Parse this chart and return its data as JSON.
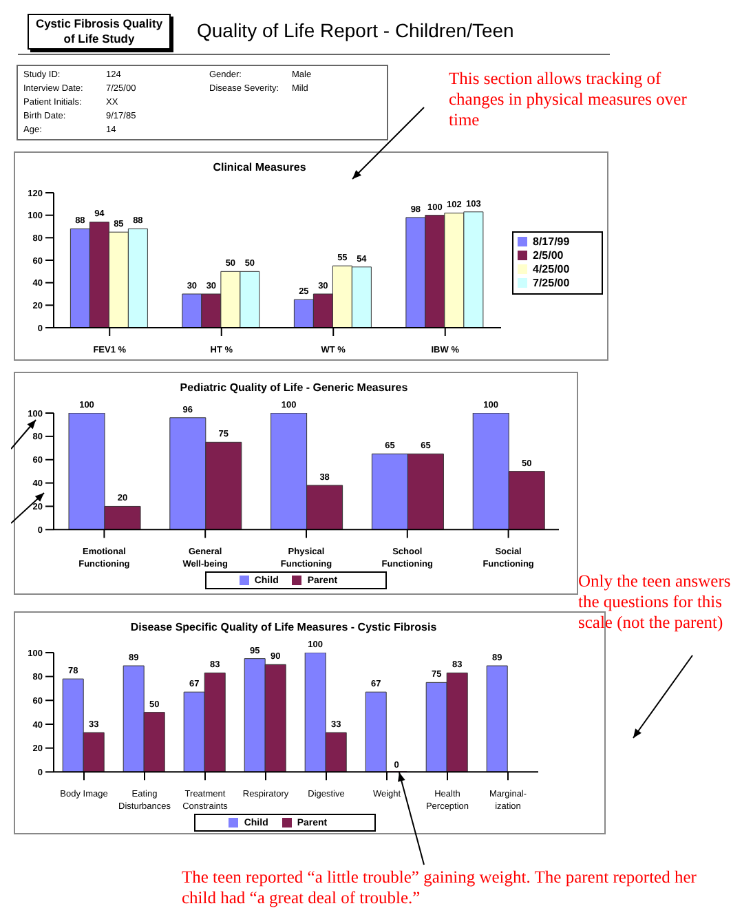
{
  "chart_data": [
    {
      "type": "other",
      "title": "Quality of Life Report - Children/Teen",
      "subtitle": "Cystic Fibrosis Quality of Life Study",
      "annotations": [
        "Study ID:",
        "124",
        "Interview Date:",
        "7/25/00",
        "Patient Initials:",
        "XX",
        "Birth Date:",
        "9/17/85",
        "Age:",
        "14",
        "Gender:",
        "Male",
        "Disease Severity:",
        "Mild"
      ]
    },
    {
      "type": "bar",
      "title": "Clinical Measures",
      "categories": [
        "FEV1 %",
        "HT %",
        "WT %",
        "IBW %"
      ],
      "series": [
        {
          "name": "8/17/99",
          "color": "#8080ff",
          "values": [
            88,
            30,
            25,
            98
          ]
        },
        {
          "name": "2/5/00",
          "color": "#7f1f4f",
          "values": [
            94,
            30,
            30,
            100
          ]
        },
        {
          "name": "4/25/00",
          "color": "#ffffcc",
          "values": [
            85,
            50,
            55,
            102
          ]
        },
        {
          "name": "7/25/00",
          "color": "#ccffff",
          "values": [
            88,
            50,
            54,
            103
          ]
        }
      ],
      "ylim": [
        0,
        120
      ],
      "yticks": [
        0,
        20,
        40,
        60,
        80,
        100,
        120
      ],
      "data_labels": true,
      "legend": "right",
      "grid": false,
      "annotations": [
        "This section allows tracking of changes in physical measures over time"
      ]
    },
    {
      "type": "bar",
      "title": "Pediatric Quality of Life - Generic Measures",
      "categories": [
        "Emotional Functioning",
        "General Well-being",
        "Physical Functioning",
        "School Functioning",
        "Social Functioning"
      ],
      "series": [
        {
          "name": "Child",
          "color": "#8080ff",
          "values": [
            100,
            96,
            100,
            65,
            100
          ]
        },
        {
          "name": "Parent",
          "color": "#7f1f4f",
          "values": [
            20,
            75,
            38,
            65,
            50
          ]
        }
      ],
      "ylim": [
        0,
        100
      ],
      "yticks": [
        0,
        20,
        40,
        60,
        80,
        100
      ],
      "data_labels": true,
      "legend": "bottom",
      "grid": false
    },
    {
      "type": "bar",
      "title": "Disease Specific Quality of Life Measures - Cystic Fibrosis",
      "categories": [
        "Body Image",
        "Eating Disturbances",
        "Treatment Constraints",
        "Respiratory",
        "Digestive",
        "Weight",
        "Health Perception",
        "Marginal-ization"
      ],
      "series": [
        {
          "name": "Child",
          "color": "#8080ff",
          "values": [
            78,
            89,
            67,
            95,
            100,
            67,
            75,
            89
          ]
        },
        {
          "name": "Parent",
          "color": "#7f1f4f",
          "values": [
            33,
            50,
            83,
            90,
            33,
            0,
            83,
            null
          ]
        }
      ],
      "ylim": [
        0,
        100
      ],
      "yticks": [
        0,
        20,
        40,
        60,
        80,
        100
      ],
      "data_labels": true,
      "legend": "bottom",
      "grid": false,
      "annotations": [
        "Only the teen answers the questions for this scale (not the parent)",
        "The teen reported “a little trouble” gaining weight.  The parent reported her child had “a great deal of trouble.”"
      ]
    }
  ]
}
